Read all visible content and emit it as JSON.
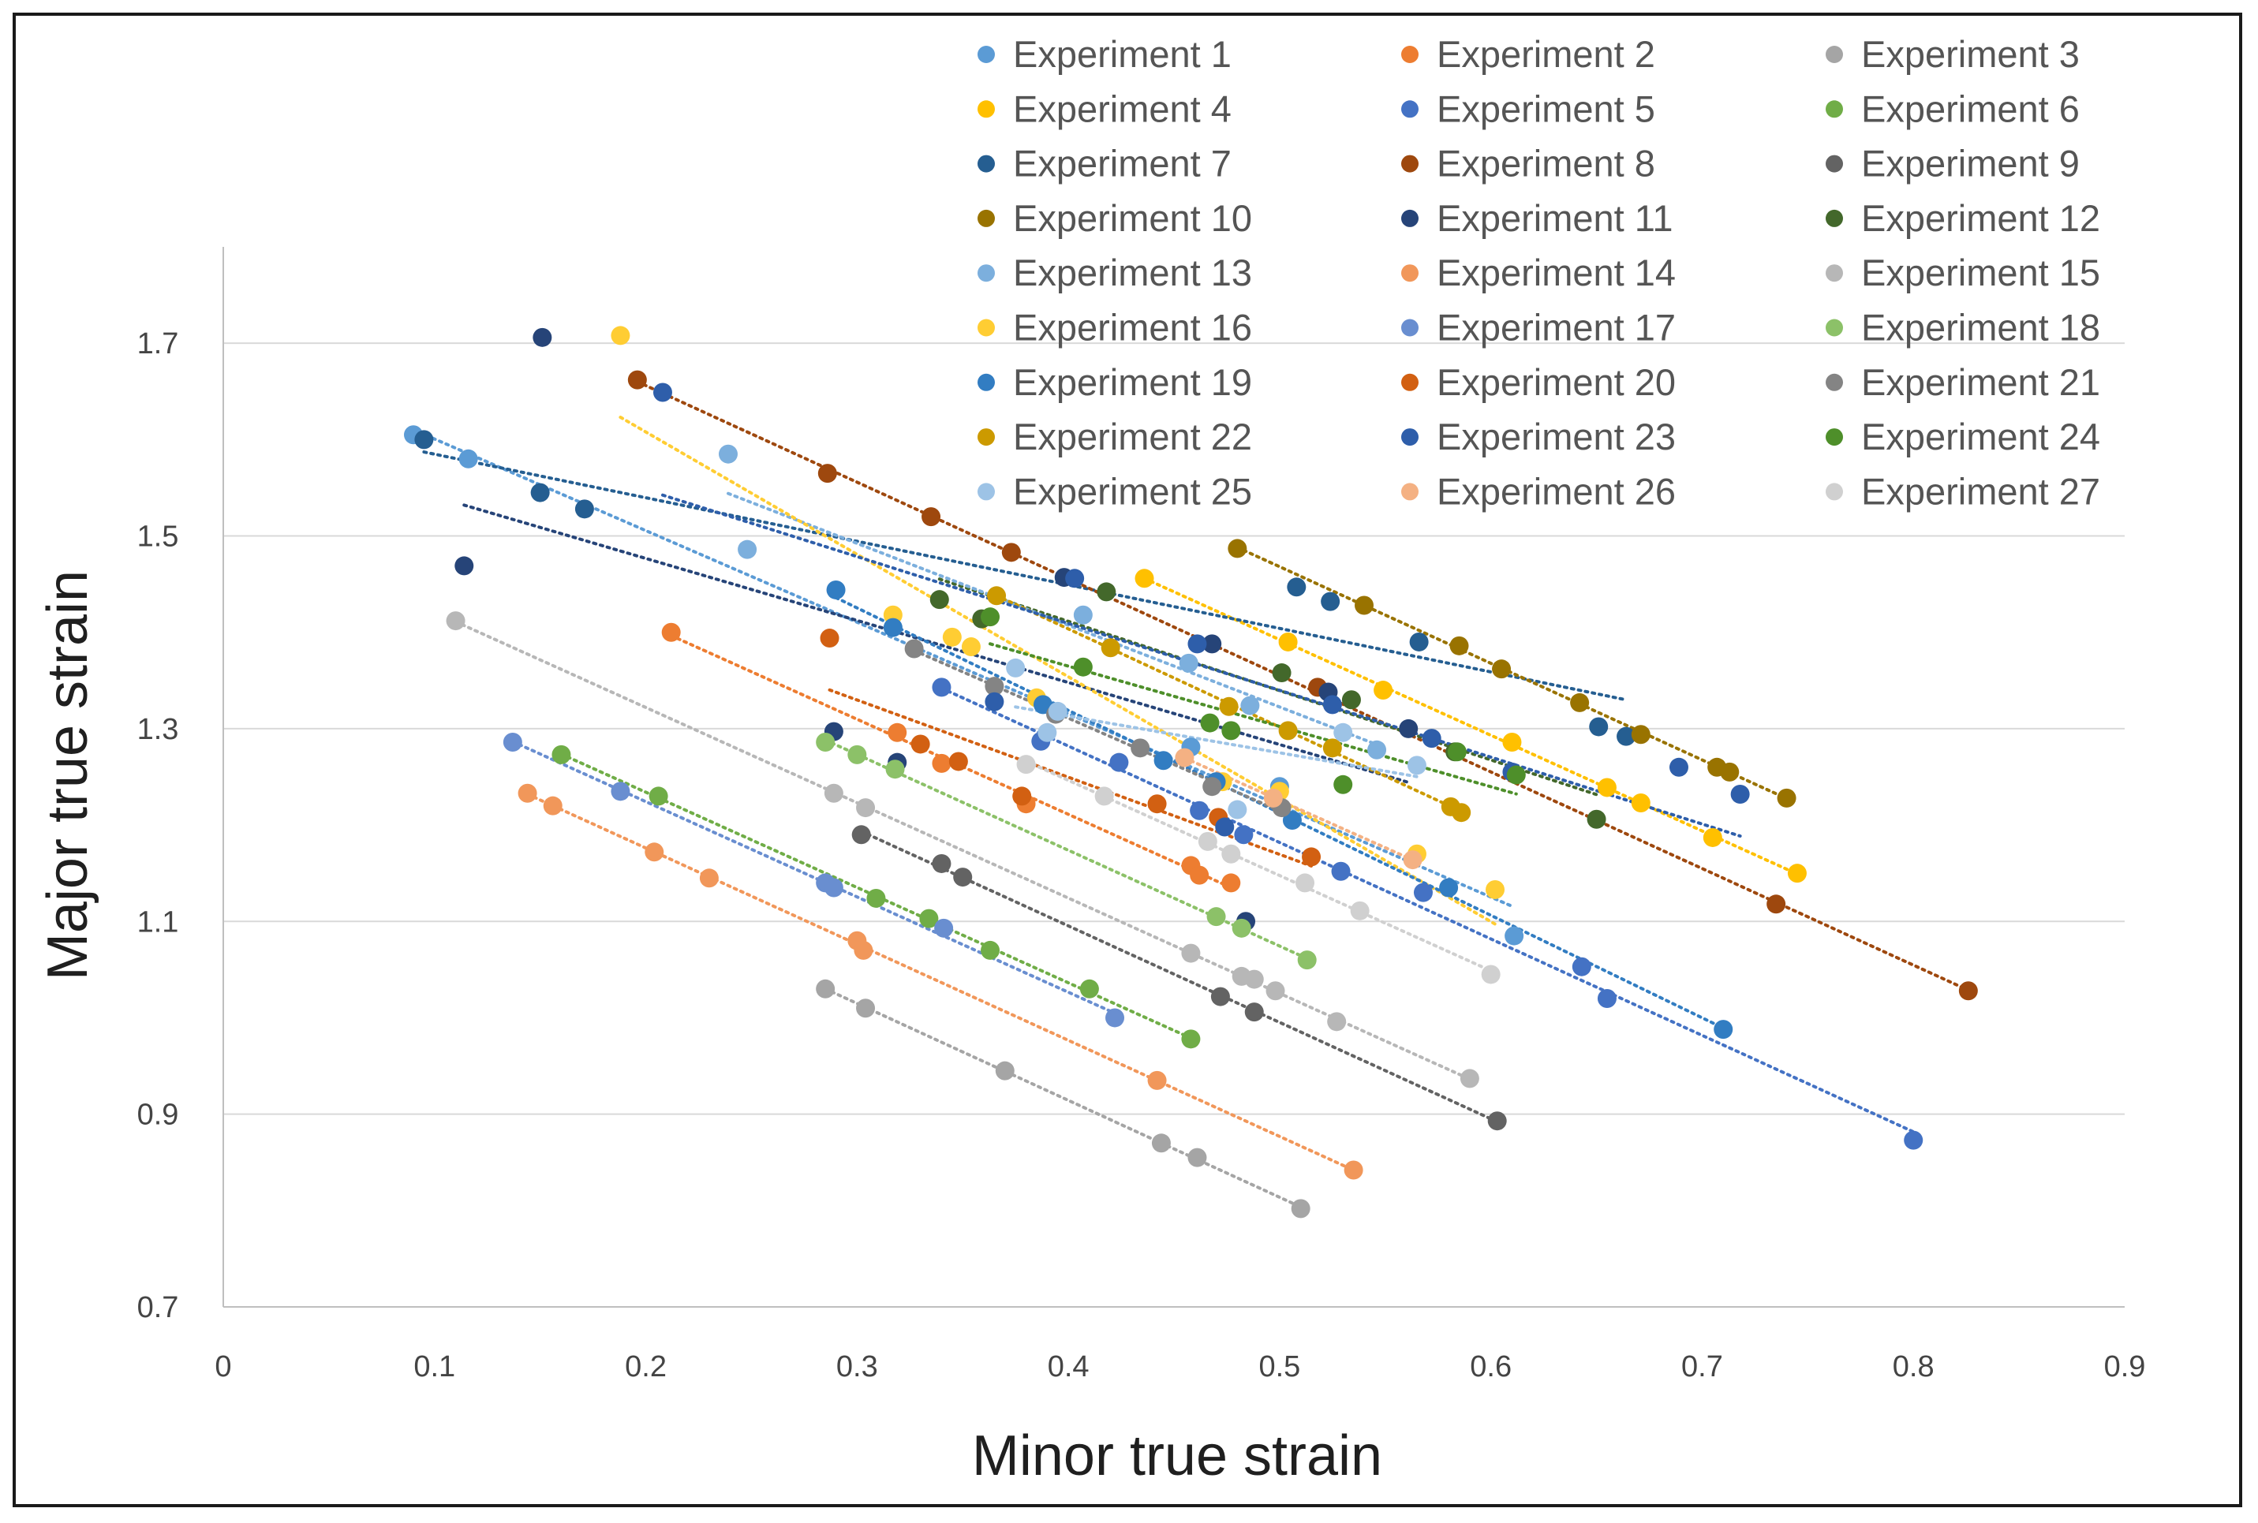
{
  "chart_data": {
    "type": "scatter",
    "title": "",
    "xlabel": "Minor true strain",
    "ylabel": "Major true strain",
    "xlim": [
      0,
      0.9
    ],
    "ylim": [
      0.7,
      1.8
    ],
    "xticks": [
      "0",
      "0.1",
      "0.2",
      "0.3",
      "0.4",
      "0.5",
      "0.6",
      "0.7",
      "0.8",
      "0.9"
    ],
    "yticks": [
      "0.7",
      "0.9",
      "1.1",
      "1.3",
      "1.5",
      "1.7"
    ],
    "grid": "horizontal",
    "trendlines": "linear, dotted",
    "legend": "top-right",
    "series": [
      {
        "name": "Experiment 1",
        "color": "#5B9BD5",
        "x": [
          0.09,
          0.116,
          0.458,
          0.5,
          0.611
        ],
        "y": [
          1.605,
          1.58,
          1.281,
          1.24,
          1.085
        ]
      },
      {
        "name": "Experiment 2",
        "color": "#ED7D31",
        "x": [
          0.212,
          0.319,
          0.34,
          0.38,
          0.458,
          0.462,
          0.477
        ],
        "y": [
          1.4,
          1.296,
          1.264,
          1.222,
          1.158,
          1.148,
          1.14
        ]
      },
      {
        "name": "Experiment 3",
        "color": "#A5A5A5",
        "x": [
          0.285,
          0.304,
          0.37,
          0.444,
          0.461,
          0.51
        ],
        "y": [
          1.03,
          1.01,
          0.945,
          0.87,
          0.855,
          0.802
        ]
      },
      {
        "name": "Experiment 4",
        "color": "#FFC000",
        "x": [
          0.436,
          0.504,
          0.549,
          0.61,
          0.655,
          0.671,
          0.705,
          0.745
        ],
        "y": [
          1.456,
          1.39,
          1.34,
          1.286,
          1.239,
          1.223,
          1.187,
          1.15
        ]
      },
      {
        "name": "Experiment 5",
        "color": "#4472C4",
        "x": [
          0.34,
          0.387,
          0.424,
          0.462,
          0.483,
          0.529,
          0.568,
          0.643,
          0.655,
          0.8
        ],
        "y": [
          1.343,
          1.287,
          1.265,
          1.215,
          1.19,
          1.152,
          1.13,
          1.053,
          1.02,
          0.873
        ]
      },
      {
        "name": "Experiment 6",
        "color": "#70AD47",
        "x": [
          0.16,
          0.206,
          0.309,
          0.334,
          0.363,
          0.41,
          0.458
        ],
        "y": [
          1.273,
          1.23,
          1.124,
          1.103,
          1.07,
          1.03,
          0.978
        ]
      },
      {
        "name": "Experiment 7",
        "color": "#255E91",
        "x": [
          0.095,
          0.15,
          0.171,
          0.508,
          0.524,
          0.566,
          0.651,
          0.664
        ],
        "y": [
          1.6,
          1.545,
          1.528,
          1.447,
          1.432,
          1.39,
          1.302,
          1.292
        ]
      },
      {
        "name": "Experiment 8",
        "color": "#9E480E",
        "x": [
          0.196,
          0.286,
          0.335,
          0.373,
          0.518,
          0.735,
          0.826
        ],
        "y": [
          1.662,
          1.565,
          1.52,
          1.483,
          1.343,
          1.118,
          1.028
        ]
      },
      {
        "name": "Experiment 9",
        "color": "#636363",
        "x": [
          0.302,
          0.34,
          0.35,
          0.472,
          0.488,
          0.603
        ],
        "y": [
          1.19,
          1.16,
          1.146,
          1.022,
          1.006,
          0.893
        ]
      },
      {
        "name": "Experiment 10",
        "color": "#997300",
        "x": [
          0.48,
          0.54,
          0.585,
          0.605,
          0.642,
          0.671,
          0.707,
          0.713,
          0.74
        ],
        "y": [
          1.487,
          1.428,
          1.386,
          1.362,
          1.327,
          1.294,
          1.26,
          1.255,
          1.228
        ]
      },
      {
        "name": "Experiment 11",
        "color": "#264478",
        "x": [
          0.114,
          0.151,
          0.289,
          0.319,
          0.398,
          0.468,
          0.484,
          0.523,
          0.561
        ],
        "y": [
          1.469,
          1.706,
          1.297,
          1.265,
          1.457,
          1.388,
          1.1,
          1.338,
          1.3
        ]
      },
      {
        "name": "Experiment 12",
        "color": "#43682B",
        "x": [
          0.339,
          0.359,
          0.418,
          0.501,
          0.534,
          0.583,
          0.65
        ],
        "y": [
          1.434,
          1.414,
          1.442,
          1.358,
          1.33,
          1.276,
          1.206
        ]
      },
      {
        "name": "Experiment 13",
        "color": "#7CAFDD",
        "x": [
          0.239,
          0.248,
          0.407,
          0.457,
          0.486,
          0.546
        ],
        "y": [
          1.585,
          1.486,
          1.418,
          1.368,
          1.324,
          1.278
        ]
      },
      {
        "name": "Experiment 14",
        "color": "#F1975A",
        "x": [
          0.144,
          0.156,
          0.204,
          0.23,
          0.3,
          0.303,
          0.442,
          0.535
        ],
        "y": [
          1.233,
          1.22,
          1.172,
          1.145,
          1.08,
          1.07,
          0.935,
          0.842
        ]
      },
      {
        "name": "Experiment 15",
        "color": "#B7B7B7",
        "x": [
          0.11,
          0.289,
          0.304,
          0.458,
          0.482,
          0.488,
          0.498,
          0.527,
          0.59
        ],
        "y": [
          1.412,
          1.233,
          1.218,
          1.067,
          1.043,
          1.04,
          1.028,
          0.996,
          0.937
        ]
      },
      {
        "name": "Experiment 16",
        "color": "#FFCD33",
        "x": [
          0.188,
          0.317,
          0.345,
          0.354,
          0.385,
          0.473,
          0.5,
          0.565,
          0.602
        ],
        "y": [
          1.708,
          1.418,
          1.395,
          1.385,
          1.332,
          1.245,
          1.235,
          1.17,
          1.133
        ]
      },
      {
        "name": "Experiment 17",
        "color": "#698ED0",
        "x": [
          0.137,
          0.188,
          0.285,
          0.289,
          0.341,
          0.422
        ],
        "y": [
          1.286,
          1.235,
          1.14,
          1.135,
          1.093,
          1.0
        ]
      },
      {
        "name": "Experiment 18",
        "color": "#8CC168",
        "x": [
          0.285,
          0.3,
          0.318,
          0.47,
          0.482,
          0.513
        ],
        "y": [
          1.286,
          1.273,
          1.258,
          1.105,
          1.093,
          1.06
        ]
      },
      {
        "name": "Experiment 19",
        "color": "#327DC2",
        "x": [
          0.29,
          0.317,
          0.388,
          0.445,
          0.47,
          0.506,
          0.58,
          0.71
        ],
        "y": [
          1.444,
          1.405,
          1.325,
          1.267,
          1.245,
          1.205,
          1.135,
          0.988
        ]
      },
      {
        "name": "Experiment 20",
        "color": "#D26012",
        "x": [
          0.287,
          0.33,
          0.348,
          0.378,
          0.442,
          0.471,
          0.515
        ],
        "y": [
          1.394,
          1.284,
          1.266,
          1.23,
          1.222,
          1.208,
          1.167
        ]
      },
      {
        "name": "Experiment 21",
        "color": "#848484",
        "x": [
          0.327,
          0.365,
          0.394,
          0.434,
          0.468,
          0.501
        ],
        "y": [
          1.383,
          1.344,
          1.315,
          1.28,
          1.24,
          1.218
        ]
      },
      {
        "name": "Experiment 22",
        "color": "#CC9A00",
        "x": [
          0.366,
          0.42,
          0.476,
          0.504,
          0.525,
          0.581,
          0.586
        ],
        "y": [
          1.438,
          1.384,
          1.323,
          1.298,
          1.28,
          1.219,
          1.213
        ]
      },
      {
        "name": "Experiment 23",
        "color": "#2E5EAA",
        "x": [
          0.208,
          0.365,
          0.403,
          0.461,
          0.474,
          0.525,
          0.572,
          0.61,
          0.689,
          0.718
        ],
        "y": [
          1.649,
          1.328,
          1.456,
          1.388,
          1.198,
          1.325,
          1.29,
          1.255,
          1.26,
          1.232
        ]
      },
      {
        "name": "Experiment 24",
        "color": "#4E8F2A",
        "x": [
          0.363,
          0.407,
          0.467,
          0.477,
          0.53,
          0.584,
          0.612
        ],
        "y": [
          1.416,
          1.364,
          1.306,
          1.298,
          1.242,
          1.276,
          1.252
        ]
      },
      {
        "name": "Experiment 25",
        "color": "#9DC3E6",
        "x": [
          0.375,
          0.39,
          0.395,
          0.48,
          0.53,
          0.565
        ],
        "y": [
          1.363,
          1.296,
          1.318,
          1.216,
          1.296,
          1.262
        ]
      },
      {
        "name": "Experiment 26",
        "color": "#F4B183",
        "x": [
          0.455,
          0.497,
          0.563
        ],
        "y": [
          1.27,
          1.228,
          1.164
        ]
      },
      {
        "name": "Experiment 27",
        "color": "#D0D0D0",
        "x": [
          0.38,
          0.417,
          0.466,
          0.477,
          0.512,
          0.538,
          0.6
        ],
        "y": [
          1.263,
          1.23,
          1.183,
          1.17,
          1.14,
          1.111,
          1.045
        ]
      }
    ]
  }
}
